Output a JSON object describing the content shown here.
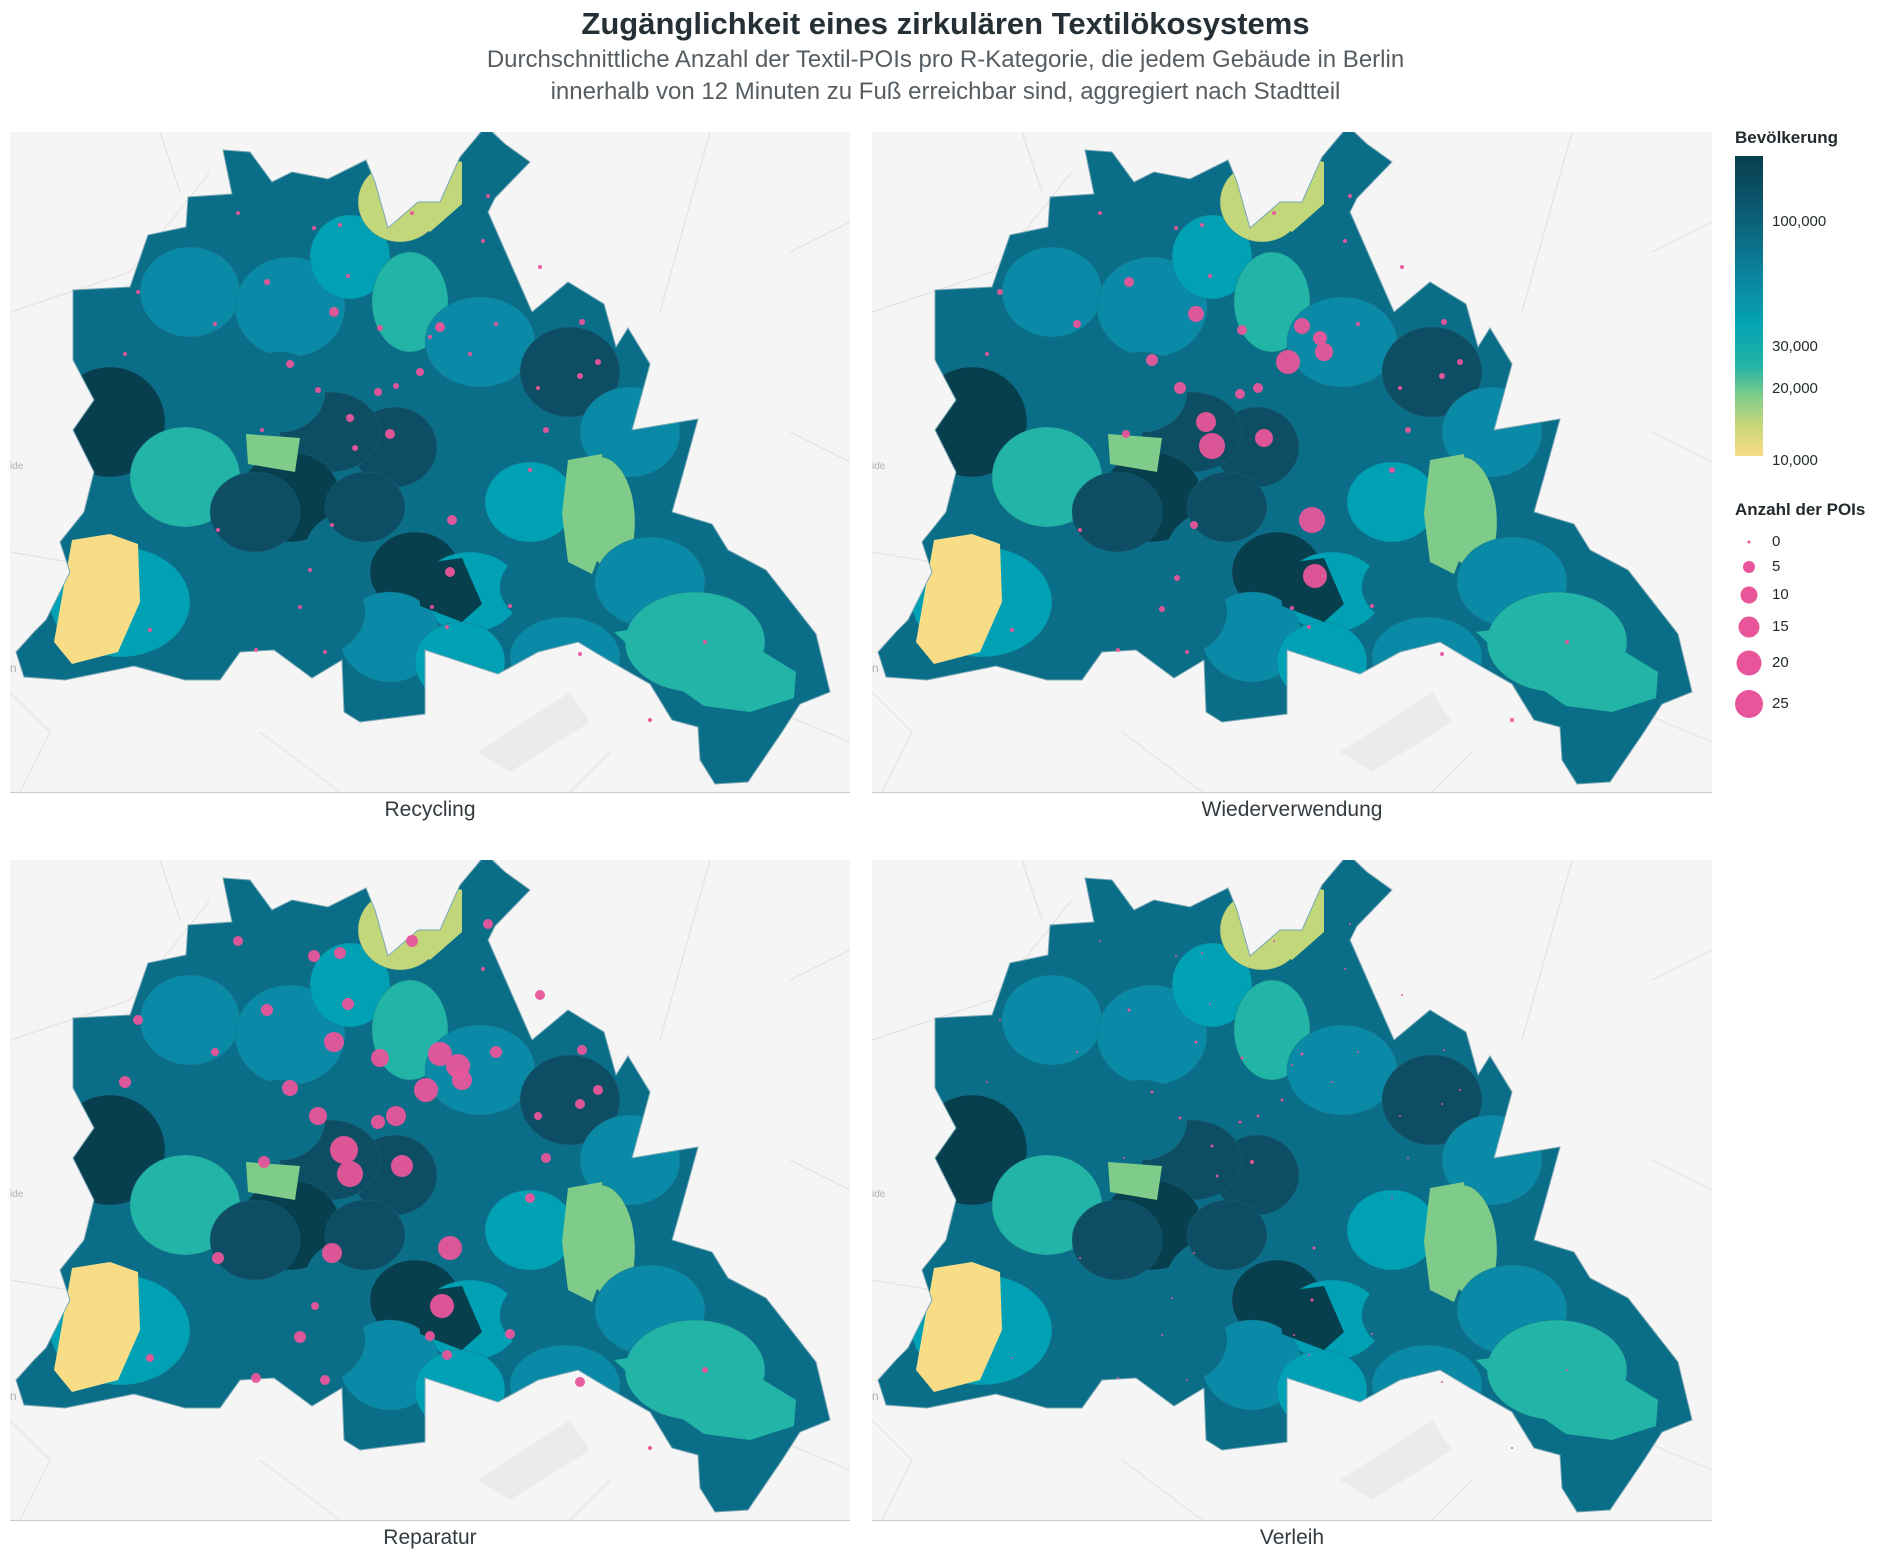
{
  "title": "Zugänglichkeit eines zirkulären Textilökosystems",
  "subtitle_line1": "Durchschnittliche Anzahl der Textil-POIs pro R-Kategorie, die jedem Gebäude in Berlin",
  "subtitle_line2": "innerhalb von 12 Minuten zu Fuß erreichbar sind, aggregiert nach Stadtteil",
  "panels": [
    {
      "label": "Recycling"
    },
    {
      "label": "Wiederverwendung"
    },
    {
      "label": "Reparatur"
    },
    {
      "label": "Verleih"
    }
  ],
  "legend": {
    "color_title": "Bevölkerung",
    "color_ticks": [
      "100,000",
      "30,000",
      "20,000",
      "10,000"
    ],
    "size_title": "Anzahl der POIs",
    "size_ticks": [
      "0",
      "5",
      "10",
      "15",
      "20",
      "25"
    ]
  },
  "basemap_partial_labels": [
    "ide",
    "n"
  ],
  "colors": {
    "bubble": "#e8559a",
    "population_scale": [
      "#f8dc86",
      "#c2d77a",
      "#7fcc8a",
      "#22b4a6",
      "#00a1b5",
      "#0a8aa6",
      "#0a6e88",
      "#0d4e64",
      "#073f4e"
    ]
  }
}
